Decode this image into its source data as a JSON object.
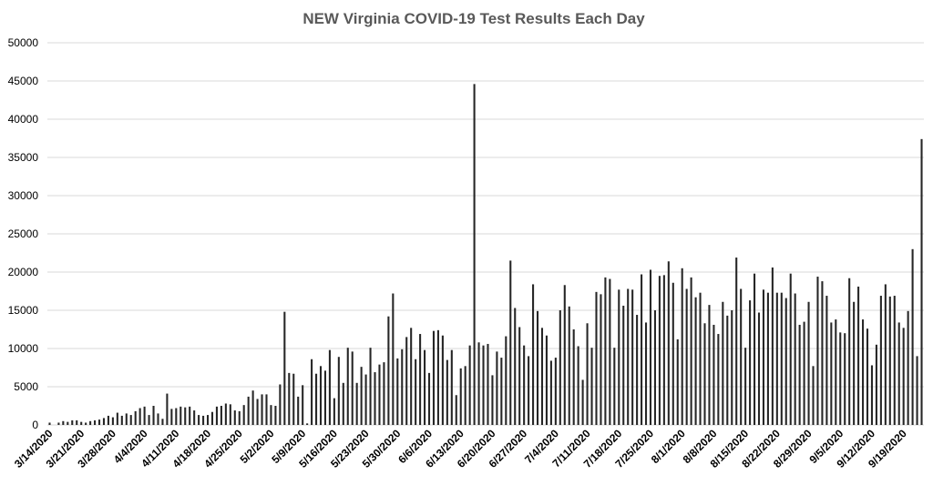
{
  "chart_data": {
    "type": "bar",
    "title": "NEW Virginia COVID-19 Test Results Each Day",
    "xlabel": "",
    "ylabel": "",
    "ylim": [
      0,
      50000
    ],
    "yticks": [
      "0",
      "5000",
      "10000",
      "15000",
      "20000",
      "25000",
      "30000",
      "35000",
      "40000",
      "45000",
      "50000"
    ],
    "grid": true,
    "legend": "none",
    "bar_color": "#262626",
    "start_date": "3/14/2020",
    "end_date": "9/19/2020",
    "x_tick_labels": [
      "3/14/2020",
      "3/21/2020",
      "3/28/2020",
      "4/4/2020",
      "4/11/2020",
      "4/18/2020",
      "4/25/2020",
      "5/2/2020",
      "5/9/2020",
      "5/16/2020",
      "5/23/2020",
      "5/30/2020",
      "6/6/2020",
      "6/13/2020",
      "6/20/2020",
      "6/27/2020",
      "7/4/2020",
      "7/11/2020",
      "7/18/2020",
      "7/25/2020",
      "8/1/2020",
      "8/8/2020",
      "8/15/2020",
      "8/22/2020",
      "8/29/2020",
      "9/5/2020",
      "9/12/2020",
      "9/19/2020"
    ],
    "values": [
      300,
      0,
      300,
      500,
      400,
      600,
      600,
      400,
      300,
      500,
      600,
      700,
      900,
      1200,
      1000,
      1600,
      1200,
      1500,
      1300,
      1800,
      2200,
      2400,
      1300,
      2500,
      1500,
      800,
      4100,
      2100,
      2200,
      2400,
      2300,
      2400,
      1900,
      1300,
      1200,
      1300,
      1700,
      2400,
      2500,
      2800,
      2700,
      1900,
      1800,
      2600,
      3700,
      4500,
      3400,
      4000,
      4000,
      2600,
      2500,
      5300,
      14800,
      6800,
      6700,
      3700,
      5200,
      200,
      8600,
      6700,
      7700,
      7100,
      9800,
      3500,
      8900,
      5500,
      10100,
      9600,
      5500,
      7600,
      6600,
      10100,
      6900,
      7900,
      8200,
      14200,
      17200,
      8700,
      9900,
      11500,
      12700,
      8600,
      11900,
      9800,
      6800,
      12300,
      12400,
      11700,
      8500,
      9800,
      3900,
      7400,
      7700,
      10400,
      44600,
      10800,
      10400,
      10600,
      6500,
      9600,
      8800,
      11600,
      21500,
      15300,
      12800,
      10400,
      9000,
      18400,
      14900,
      12700,
      11700,
      8400,
      8800,
      15000,
      18300,
      15500,
      12500,
      10300,
      5900,
      13300,
      10100,
      17400,
      17100,
      19300,
      19100,
      10100,
      17700,
      15600,
      17800,
      17700,
      14400,
      19700,
      13400,
      20300,
      15000,
      19500,
      19600,
      21400,
      18600,
      11200,
      20500,
      17800,
      19300,
      16700,
      17300,
      13300,
      15700,
      13100,
      11900,
      16100,
      14300,
      15000,
      21900,
      17800,
      10100,
      16300,
      19800,
      14700,
      17700,
      17300,
      20600,
      17300,
      17300,
      16600,
      19800,
      17200,
      13100,
      13500,
      16100,
      7700,
      19400,
      18800,
      16900,
      13400,
      13800,
      12100,
      12000,
      19200,
      16100,
      18100,
      13800,
      12600,
      7800,
      10500,
      16900,
      18400,
      16800,
      16900,
      13400,
      12700,
      14900,
      23000,
      9000,
      37400
    ]
  }
}
